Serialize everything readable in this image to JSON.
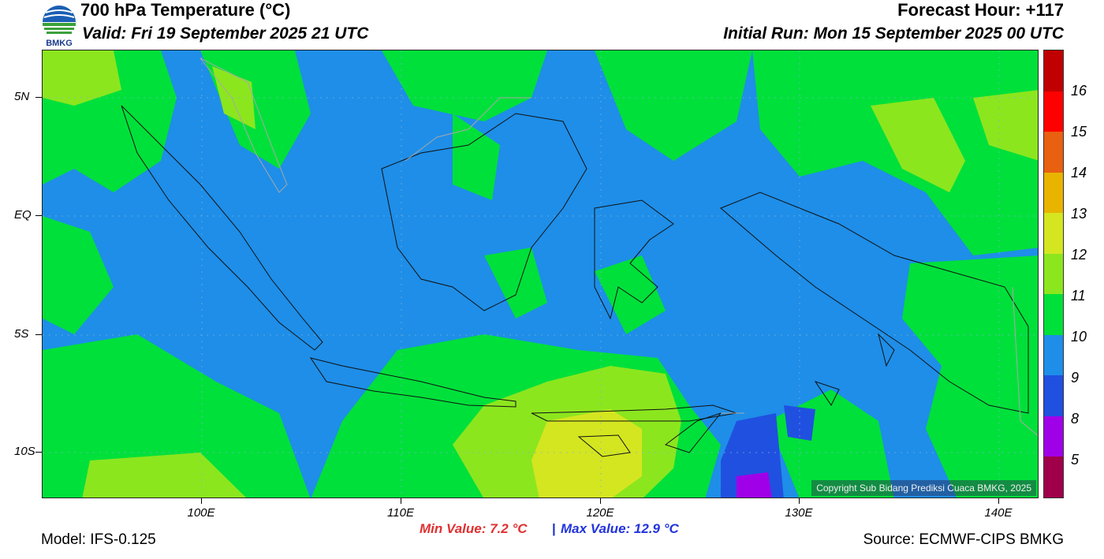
{
  "header": {
    "title": "700 hPa Temperature (°C)",
    "valid": "Valid: Fri 19 September 2025 21 UTC",
    "forecast_hour": "Forecast Hour: +117",
    "initial_run": "Initial Run: Mon 15 September 2025 00 UTC"
  },
  "logo": {
    "text": "BMKG",
    "icon": "bmkg-logo-icon"
  },
  "map": {
    "lat_labels": [
      "5N",
      "EQ",
      "5S",
      "10S"
    ],
    "lon_labels": [
      "100E",
      "110E",
      "120E",
      "130E",
      "140E"
    ],
    "copyright": "Copyright Sub Bidang Prediksi Cuaca BMKG, 2025",
    "colors": {
      "sea_dominant": "#1e8ee8",
      "warm_band": "#00e03a",
      "light_green": "#8ce61e",
      "yellow": "#d4e620",
      "dark_blue": "#2050e0",
      "purple": "#a000e8"
    }
  },
  "colorbar": {
    "labels": [
      "16",
      "15",
      "14",
      "13",
      "12",
      "11",
      "10",
      "9",
      "8",
      "5"
    ],
    "colors": [
      "#c00000",
      "#ff0000",
      "#e86010",
      "#e8b400",
      "#d4e620",
      "#8ce61e",
      "#00e03a",
      "#1e8ee8",
      "#2050e0",
      "#a000e8",
      "#a0004a"
    ]
  },
  "footer": {
    "min_value": "Min Value: 7.2 °C",
    "separator": "|",
    "max_value": "Max Value: 12.9 °C",
    "model": "Model: IFS-0.125",
    "source": "Source: ECMWF-CIPS BMKG"
  }
}
